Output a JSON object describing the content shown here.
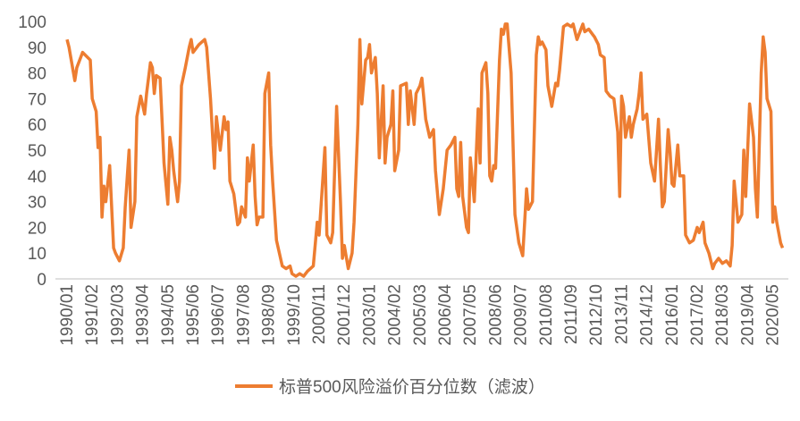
{
  "chart_data": {
    "type": "line",
    "x": [
      "1990/01",
      "1990/02",
      "1990/05",
      "1990/06",
      "1990/09",
      "1991/01",
      "1991/02",
      "1991/04",
      "1991/05",
      "1991/06",
      "1991/07",
      "1991/08",
      "1991/09",
      "1991/11",
      "1992/01",
      "1992/02",
      "1992/04",
      "1992/06",
      "1992/07",
      "1992/09",
      "1992/10",
      "1992/12",
      "1993/01",
      "1993/03",
      "1993/05",
      "1993/06",
      "1993/08",
      "1993/09",
      "1993/10",
      "1993/11",
      "1994/01",
      "1994/03",
      "1994/05",
      "1994/06",
      "1994/07",
      "1994/08",
      "1994/10",
      "1994/11",
      "1994/12",
      "1995/02",
      "1995/04",
      "1995/05",
      "1995/06",
      "1995/09",
      "1995/12",
      "1996/01",
      "1996/03",
      "1996/05",
      "1996/06",
      "1996/08",
      "1996/10",
      "1996/11",
      "1996/12",
      "1997/01",
      "1997/03",
      "1997/05",
      "1997/06",
      "1997/07",
      "1997/09",
      "1997/10",
      "1997/11",
      "1998/01",
      "1998/02",
      "1998/03",
      "1998/04",
      "1998/06",
      "1998/07",
      "1998/09",
      "1998/10",
      "1998/11",
      "1999/01",
      "1999/04",
      "1999/06",
      "1999/08",
      "1999/09",
      "1999/11",
      "2000/01",
      "2000/03",
      "2000/05",
      "2000/08",
      "2000/10",
      "2000/11",
      "2001/02",
      "2001/03",
      "2001/05",
      "2001/06",
      "2001/08",
      "2001/10",
      "2001/11",
      "2001/12",
      "2002/02",
      "2002/04",
      "2002/05",
      "2002/07",
      "2002/08",
      "2002/09",
      "2002/11",
      "2002/12",
      "2003/01",
      "2003/02",
      "2003/04",
      "2003/05",
      "2003/06",
      "2003/08",
      "2003/09",
      "2003/10",
      "2003/12",
      "2004/01",
      "2004/02",
      "2004/04",
      "2004/05",
      "2004/08",
      "2004/09",
      "2004/10",
      "2004/12",
      "2005/01",
      "2005/03",
      "2005/04",
      "2005/05",
      "2005/06",
      "2005/08",
      "2005/10",
      "2005/11",
      "2006/01",
      "2006/03",
      "2006/05",
      "2006/07",
      "2006/09",
      "2006/10",
      "2006/11",
      "2006/12",
      "2007/01",
      "2007/03",
      "2007/04",
      "2007/05",
      "2007/07",
      "2007/09",
      "2007/10",
      "2007/11",
      "2008/01",
      "2008/02",
      "2008/03",
      "2008/04",
      "2008/05",
      "2008/06",
      "2008/08",
      "2008/09",
      "2008/10",
      "2008/11",
      "2008/12",
      "2009/02",
      "2009/04",
      "2009/06",
      "2009/08",
      "2009/10",
      "2009/11",
      "2010/01",
      "2010/03",
      "2010/04",
      "2010/05",
      "2010/06",
      "2010/08",
      "2010/09",
      "2010/11",
      "2011/01",
      "2011/02",
      "2011/03",
      "2011/05",
      "2011/07",
      "2011/09",
      "2011/10",
      "2011/12",
      "2012/03",
      "2012/04",
      "2012/06",
      "2012/08",
      "2012/09",
      "2012/11",
      "2012/12",
      "2013/02",
      "2013/03",
      "2013/05",
      "2013/07",
      "2013/09",
      "2013/10",
      "2013/11",
      "2013/12",
      "2014/01",
      "2014/03",
      "2014/04",
      "2014/05",
      "2014/07",
      "2014/08",
      "2014/09",
      "2014/10",
      "2014/12",
      "2015/02",
      "2015/04",
      "2015/06",
      "2015/07",
      "2015/08",
      "2015/09",
      "2015/11",
      "2015/12",
      "2016/01",
      "2016/02",
      "2016/04",
      "2016/05",
      "2016/07",
      "2016/08",
      "2016/10",
      "2016/12",
      "2017/02",
      "2017/03",
      "2017/05",
      "2017/06",
      "2017/08",
      "2017/10",
      "2017/11",
      "2018/01",
      "2018/03",
      "2018/05",
      "2018/07",
      "2018/08",
      "2018/09",
      "2018/11",
      "2019/01",
      "2019/02",
      "2019/03",
      "2019/05",
      "2019/07",
      "2019/08",
      "2019/09",
      "2019/11",
      "2019/12",
      "2020/01",
      "2020/02",
      "2020/04",
      "2020/05",
      "2020/06",
      "2020/07",
      "2020/09",
      "2020/10"
    ],
    "series": [
      {
        "name": "标普500风险溢价百分位数（滤波）",
        "color": "#ed7d31",
        "values": [
          93,
          90,
          77,
          82,
          88,
          85,
          70,
          65,
          51,
          55,
          24,
          36,
          30,
          44,
          12,
          10,
          7,
          12,
          28,
          50,
          20,
          30,
          63,
          71,
          64,
          72,
          84,
          82,
          72,
          79,
          78,
          45,
          29,
          55,
          50,
          42,
          30,
          38,
          75,
          82,
          90,
          93,
          88,
          91,
          93,
          90,
          70,
          43,
          63,
          50,
          63,
          58,
          61,
          38,
          33,
          21,
          22,
          28,
          24,
          47,
          38,
          52,
          32,
          21,
          24,
          24,
          72,
          80,
          52,
          38,
          15,
          5,
          4,
          5,
          2,
          1,
          2,
          1,
          3,
          5,
          22,
          17,
          51,
          17,
          14,
          18,
          67,
          30,
          8,
          13,
          4,
          10,
          22,
          60,
          93,
          68,
          85,
          86,
          91,
          80,
          86,
          72,
          47,
          75,
          45,
          55,
          60,
          73,
          42,
          50,
          75,
          76,
          60,
          73,
          60,
          72,
          75,
          78,
          70,
          62,
          55,
          58,
          42,
          25,
          35,
          50,
          52,
          55,
          35,
          32,
          53,
          32,
          20,
          18,
          47,
          30,
          66,
          45,
          80,
          84,
          72,
          40,
          38,
          44,
          43,
          85,
          97,
          95,
          99,
          99,
          80,
          25,
          14,
          9,
          35,
          27,
          30,
          87,
          94,
          91,
          92,
          89,
          75,
          67,
          76,
          75,
          81,
          98,
          99,
          98,
          99,
          93,
          99,
          96,
          97,
          95,
          94,
          91,
          87,
          86,
          73,
          71,
          70,
          57,
          32,
          71,
          67,
          55,
          63,
          55,
          60,
          66,
          72,
          80,
          62,
          64,
          45,
          38,
          62,
          44,
          28,
          30,
          58,
          49,
          37,
          36,
          52,
          40,
          40,
          17,
          14,
          15,
          20,
          18,
          22,
          14,
          10,
          4,
          6,
          8,
          6,
          7,
          5,
          13,
          38,
          22,
          25,
          50,
          32,
          68,
          55,
          35,
          24,
          80,
          94,
          88,
          70,
          65,
          22,
          28,
          22,
          14,
          12
        ]
      }
    ],
    "xlim": [
      "1989/07",
      "2021/01"
    ],
    "xticks": [
      "1990/01",
      "1991/02",
      "1992/03",
      "1993/04",
      "1994/05",
      "1995/06",
      "1996/07",
      "1997/08",
      "1998/09",
      "1999/10",
      "2000/11",
      "2001/12",
      "2003/01",
      "2004/02",
      "2005/03",
      "2006/04",
      "2007/05",
      "2008/06",
      "2009/07",
      "2010/08",
      "2011/09",
      "2012/10",
      "2013/11",
      "2014/12",
      "2016/01",
      "2017/02",
      "2018/03",
      "2019/04",
      "2020/05"
    ],
    "ylim": [
      0,
      100
    ],
    "yticks": [
      0,
      10,
      20,
      30,
      40,
      50,
      60,
      70,
      80,
      90,
      100
    ],
    "grid": false,
    "legend": "bottom"
  }
}
